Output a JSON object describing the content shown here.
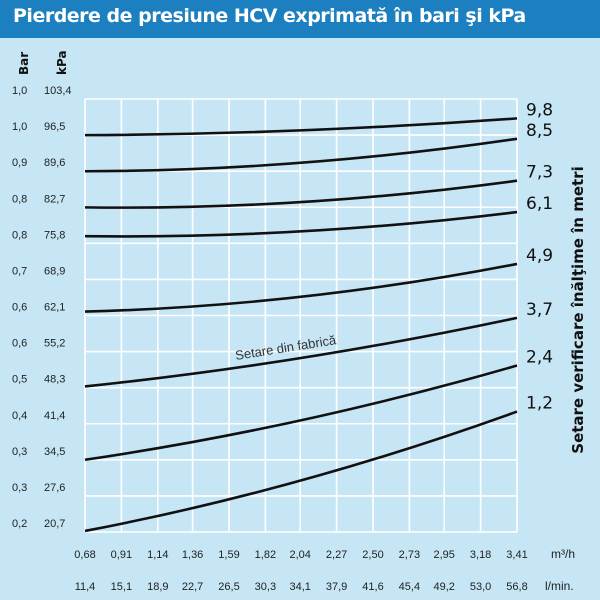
{
  "chart_data": {
    "type": "line",
    "title": "Pierdere de presiune HCV exprimată în bari şi kPa",
    "y_unit_bar": "Bar",
    "y_unit_kpa": "kPa",
    "right_title": "Setare verificare înălţime în metri",
    "x_unit_top": "m³/h",
    "x_unit_bottom": "l/min.",
    "annotation": "Setare din fabrică",
    "x_ticks_m3h": [
      "0,68",
      "0,91",
      "1,14",
      "1,36",
      "1,59",
      "1,82",
      "2,04",
      "2,27",
      "2,50",
      "2,73",
      "2,95",
      "3,18",
      "3,41"
    ],
    "x_ticks_lmin": [
      "11,4",
      "15,1",
      "18,9",
      "22,7",
      "26,5",
      "30,3",
      "34,1",
      "37,9",
      "41,6",
      "45,4",
      "49,2",
      "53,0",
      "56,8"
    ],
    "y_ticks_bar": [
      "1,0",
      "1,0",
      "0,9",
      "0,8",
      "0,8",
      "0,7",
      "0,6",
      "0,6",
      "0,5",
      "0,4",
      "0,3",
      "0,3",
      "0,2"
    ],
    "y_ticks_kpa": [
      "103,4",
      "96,5",
      "89,6",
      "82,7",
      "75,8",
      "68,9",
      "62,1",
      "55,2",
      "48,3",
      "41,4",
      "34,5",
      "27,6",
      "20,7"
    ],
    "x_range": [
      0.68,
      3.41
    ],
    "y_range": [
      20.7,
      103.4
    ],
    "series": [
      {
        "name": "9,8",
        "x": [
          0.68,
          2.04,
          3.41
        ],
        "y": [
          96.5,
          97.4,
          99.7
        ]
      },
      {
        "name": "8,5",
        "x": [
          0.68,
          2.04,
          3.41
        ],
        "y": [
          89.6,
          91.2,
          95.8
        ]
      },
      {
        "name": "7,3",
        "x": [
          0.68,
          2.04,
          3.41
        ],
        "y": [
          82.7,
          83.7,
          87.8
        ]
      },
      {
        "name": "6,1",
        "x": [
          0.68,
          2.04,
          3.41
        ],
        "y": [
          77.2,
          78.1,
          81.8
        ]
      },
      {
        "name": "4,9",
        "x": [
          0.68,
          2.04,
          3.41
        ],
        "y": [
          62.8,
          65.6,
          71.9
        ]
      },
      {
        "name": "3,7",
        "x": [
          0.68,
          2.04,
          3.41
        ],
        "y": [
          48.5,
          53.9,
          61.6
        ]
      },
      {
        "name": "2,4",
        "x": [
          0.68,
          2.04,
          3.41
        ],
        "y": [
          34.5,
          42.0,
          52.5
        ]
      },
      {
        "name": "1,2",
        "x": [
          0.68,
          2.04,
          3.41
        ],
        "y": [
          20.9,
          30.5,
          43.7
        ]
      }
    ]
  },
  "colors": {
    "background": "#c6e6f6",
    "title_bar": "#1b7fc0",
    "grid": "#ffffff",
    "curve": "#111111"
  }
}
